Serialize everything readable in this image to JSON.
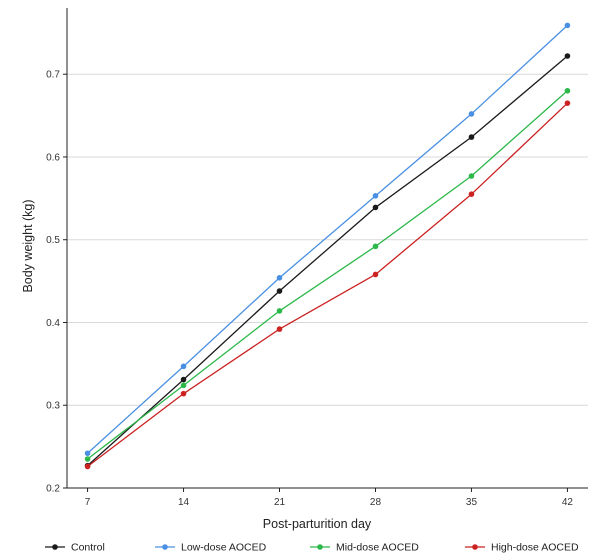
{
  "chart_data": {
    "type": "line",
    "title": "",
    "xlabel": "Post-parturition day",
    "ylabel": "Body weight (kg)",
    "x": [
      7,
      14,
      21,
      28,
      35,
      42
    ],
    "x_tick_labels": [
      "7",
      "14",
      "21",
      "28",
      "35",
      "42"
    ],
    "y_tick_values": [
      0.2,
      0.3,
      0.4,
      0.5,
      0.6,
      0.7
    ],
    "y_tick_labels": [
      "0.2",
      "0.3",
      "0.4",
      "0.5",
      "0.6",
      "0.7"
    ],
    "ylim": [
      0.2,
      0.78
    ],
    "xlim": [
      5.5,
      43.5
    ],
    "grid": "horizontal",
    "legend_position": "bottom",
    "series": [
      {
        "name": "Control",
        "color": "#1a1a1a",
        "values": [
          0.227,
          0.331,
          0.438,
          0.539,
          0.624,
          0.722
        ]
      },
      {
        "name": "Low-dose AOCED",
        "color": "#4a90e2",
        "values": [
          0.242,
          0.347,
          0.454,
          0.553,
          0.652,
          0.759
        ]
      },
      {
        "name": "Mid-dose AOCED",
        "color": "#2db84a",
        "values": [
          0.235,
          0.324,
          0.414,
          0.492,
          0.577,
          0.68
        ]
      },
      {
        "name": "High-dose AOCED",
        "color": "#cc2222",
        "values": [
          0.226,
          0.314,
          0.392,
          0.458,
          0.555,
          0.665
        ]
      }
    ]
  }
}
